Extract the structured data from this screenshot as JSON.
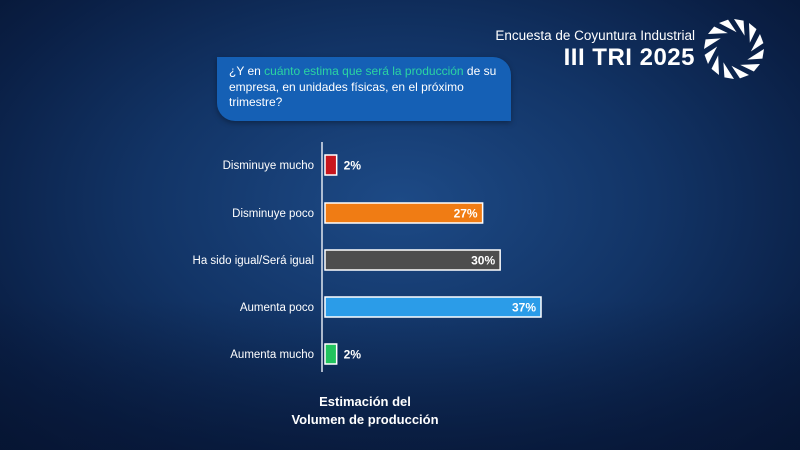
{
  "header": {
    "title": "Encuesta de Coyuntura Industrial",
    "subtitle": "III TRI 2025"
  },
  "question": {
    "prefix": "¿Y en ",
    "highlight": "cuánto estima que será la producción",
    "suffix": " de su empresa, en unidades físicas, en el próximo trimestre?"
  },
  "caption": {
    "line1": "Estimación del",
    "line2": "Volumen de producción"
  },
  "colors": {
    "accent_highlight": "#2bd4a2",
    "question_box": "#1560b5"
  },
  "chart_data": {
    "type": "bar",
    "orientation": "horizontal",
    "categories": [
      "Disminuye mucho",
      "Disminuye poco",
      "Ha sido igual/Será igual",
      "Aumenta poco",
      "Aumenta mucho"
    ],
    "values": [
      2,
      27,
      30,
      37,
      2
    ],
    "value_labels": [
      "2%",
      "27%",
      "30%",
      "37%",
      "2%"
    ],
    "colors": [
      "#c8161d",
      "#f07c14",
      "#4d4d4d",
      "#2b9ce8",
      "#22c35e"
    ],
    "unit": "%",
    "xlim": [
      0,
      37
    ]
  }
}
